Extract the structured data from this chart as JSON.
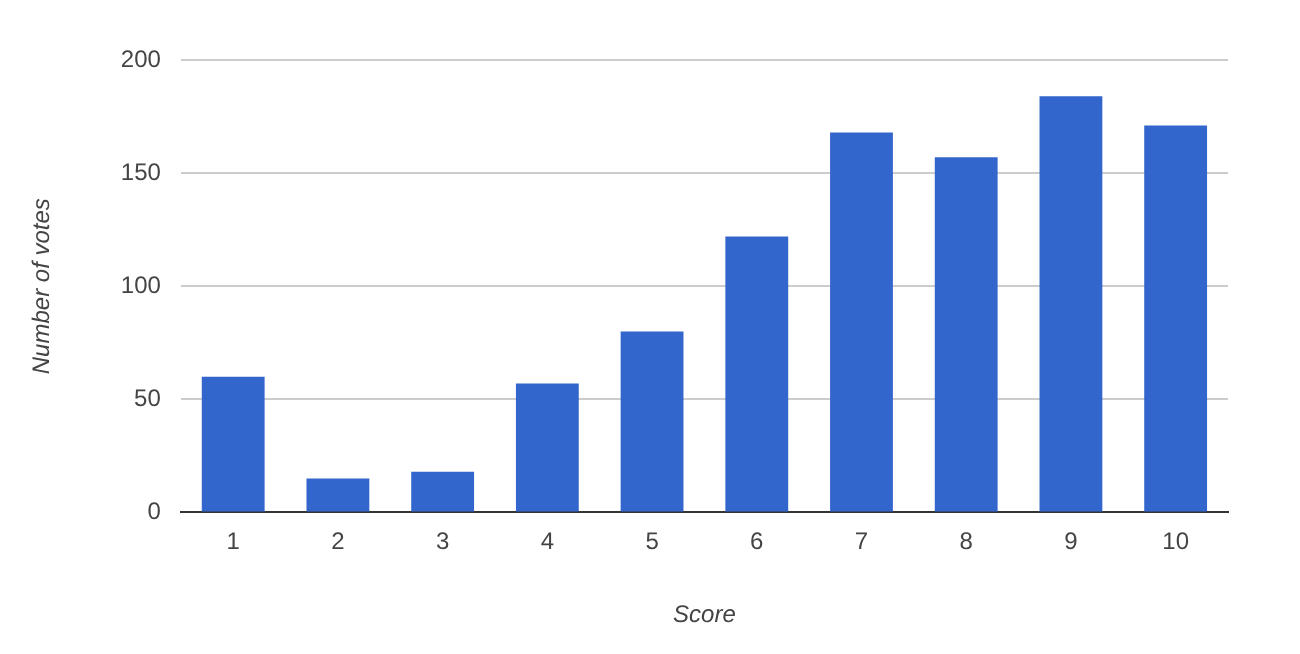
{
  "chart_data": {
    "type": "bar",
    "xlabel": "Score",
    "ylabel": "Number of votes",
    "categories": [
      "1",
      "2",
      "3",
      "4",
      "5",
      "6",
      "7",
      "8",
      "9",
      "10"
    ],
    "values": [
      60,
      15,
      18,
      57,
      80,
      122,
      168,
      157,
      184,
      171
    ],
    "color": "#3366cc",
    "ylim": [
      0,
      200
    ],
    "yticks": [
      0,
      50,
      100,
      150,
      200
    ],
    "grid": "y",
    "legend": false
  }
}
